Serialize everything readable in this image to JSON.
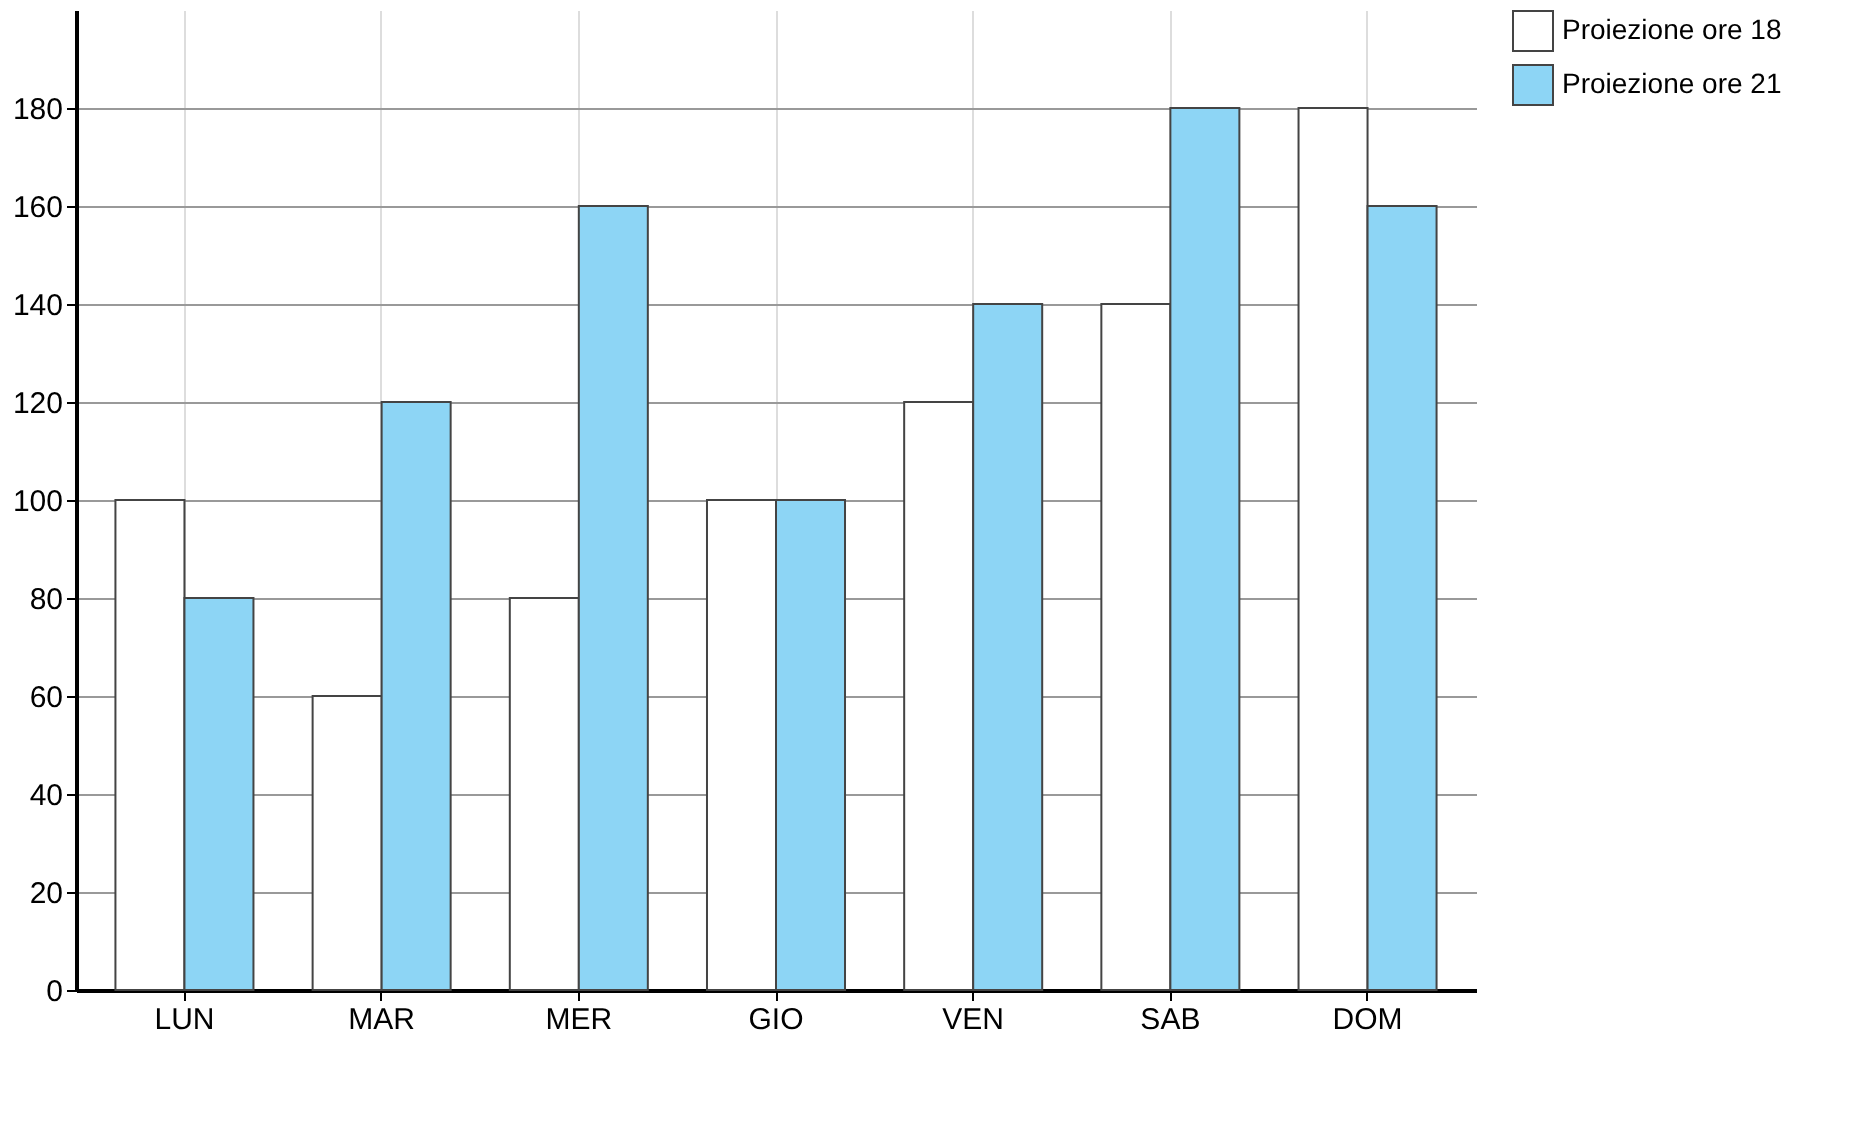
{
  "chart_data": {
    "type": "bar",
    "categories": [
      "LUN",
      "MAR",
      "MER",
      "GIO",
      "VEN",
      "SAB",
      "DOM"
    ],
    "series": [
      {
        "name": "Proiezione ore 18",
        "color": "#ffffff",
        "values": [
          100,
          60,
          80,
          100,
          120,
          140,
          180
        ]
      },
      {
        "name": "Proiezione ore 21",
        "color": "#8dd5f5",
        "values": [
          80,
          120,
          160,
          100,
          140,
          180,
          160
        ]
      }
    ],
    "ylim": [
      0,
      200
    ],
    "yticks": [
      0,
      20,
      40,
      60,
      80,
      100,
      120,
      140,
      160,
      180
    ],
    "grid": true,
    "legend": "right"
  }
}
